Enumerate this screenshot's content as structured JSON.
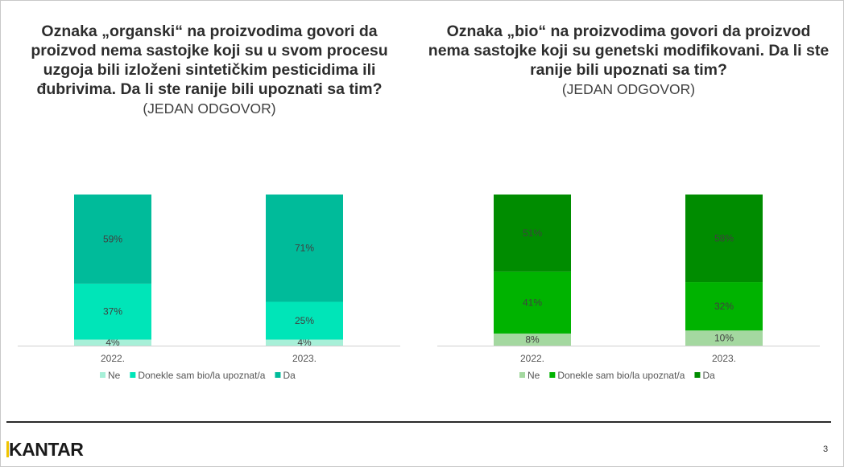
{
  "page_number": "3",
  "logo": {
    "text": "KANTAR"
  },
  "chart_data": [
    {
      "type": "bar",
      "stacked": true,
      "title": "Oznaka „organski“ na proizvodima govori da proizvod nema sastojke koji su u svom procesu uzgoja bili izloženi sintetičkim pesticidima ili đubrivima. Da li ste ranije bili upoznati sa tim?",
      "subtitle": "(JEDAN ODGOVOR)",
      "categories": [
        "2022.",
        "2023."
      ],
      "series": [
        {
          "name": "Ne",
          "values": [
            4,
            4
          ],
          "labels": [
            "4%",
            "4%"
          ],
          "color": "#a7f0d8"
        },
        {
          "name": "Donekle sam bio/la upoznat/a",
          "values": [
            37,
            25
          ],
          "labels": [
            "37%",
            "25%"
          ],
          "color": "#00e5b8"
        },
        {
          "name": "Da",
          "values": [
            59,
            71
          ],
          "labels": [
            "59%",
            "71%"
          ],
          "color": "#00bb9a"
        }
      ],
      "ylim": [
        0,
        100
      ],
      "legend": "bottom",
      "grid": false
    },
    {
      "type": "bar",
      "stacked": true,
      "title": "Oznaka „bio“ na proizvodima govori da proizvod nema sastojke koji su genetski modifikovani. Da li ste ranije bili upoznati sa tim?",
      "subtitle": "(JEDAN ODGOVOR)",
      "categories": [
        "2022.",
        "2023."
      ],
      "series": [
        {
          "name": "Ne",
          "values": [
            8,
            10
          ],
          "labels": [
            "8%",
            "10%"
          ],
          "color": "#a4d8a0"
        },
        {
          "name": "Donekle sam bio/la upoznat/a",
          "values": [
            41,
            32
          ],
          "labels": [
            "41%",
            "32%"
          ],
          "color": "#00b300"
        },
        {
          "name": "Da",
          "values": [
            51,
            58
          ],
          "labels": [
            "51%",
            "58%"
          ],
          "color": "#008c00"
        }
      ],
      "ylim": [
        0,
        100
      ],
      "legend": "bottom",
      "grid": false
    }
  ]
}
